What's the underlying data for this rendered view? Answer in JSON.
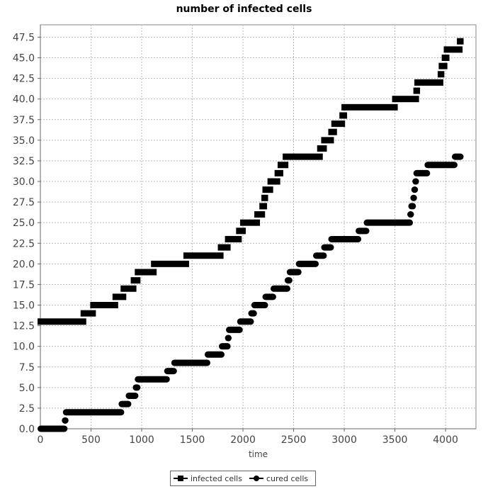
{
  "chart_data": {
    "type": "line",
    "title": "number of infected cells",
    "xlabel": "time",
    "ylabel": "",
    "xlim": [
      0,
      4300
    ],
    "ylim": [
      0,
      49
    ],
    "x_ticks": [
      "0",
      "500",
      "1000",
      "1500",
      "2000",
      "2500",
      "3000",
      "3500",
      "4000"
    ],
    "y_ticks": [
      "0.0",
      "2.5",
      "5.0",
      "7.5",
      "10.0",
      "12.5",
      "15.0",
      "17.5",
      "20.0",
      "22.5",
      "25.0",
      "27.5",
      "30.0",
      "32.5",
      "35.0",
      "37.5",
      "40.0",
      "42.5",
      "45.0",
      "47.5"
    ],
    "grid": true,
    "legend_position": "bottom",
    "series": [
      {
        "name": "infected cells",
        "marker": "square",
        "color": "#000000",
        "steps": [
          [
            0,
            425,
            13
          ],
          [
            425,
            520,
            14
          ],
          [
            520,
            740,
            15
          ],
          [
            740,
            820,
            16
          ],
          [
            820,
            920,
            17
          ],
          [
            920,
            960,
            18
          ],
          [
            960,
            1120,
            19
          ],
          [
            1120,
            1440,
            20
          ],
          [
            1440,
            1780,
            21
          ],
          [
            1780,
            1850,
            22
          ],
          [
            1850,
            1960,
            23
          ],
          [
            1960,
            2000,
            24
          ],
          [
            2000,
            2140,
            25
          ],
          [
            2140,
            2190,
            26
          ],
          [
            2190,
            2210,
            27
          ],
          [
            2210,
            2220,
            28
          ],
          [
            2220,
            2270,
            29
          ],
          [
            2270,
            2340,
            30
          ],
          [
            2340,
            2370,
            31
          ],
          [
            2370,
            2420,
            32
          ],
          [
            2420,
            2760,
            33
          ],
          [
            2760,
            2800,
            34
          ],
          [
            2800,
            2870,
            35
          ],
          [
            2870,
            2900,
            36
          ],
          [
            2900,
            2980,
            37
          ],
          [
            2980,
            3000,
            38
          ],
          [
            3000,
            3500,
            39
          ],
          [
            3500,
            3710,
            40
          ],
          [
            3710,
            3720,
            41
          ],
          [
            3720,
            3950,
            42
          ],
          [
            3950,
            3960,
            43
          ],
          [
            3960,
            3990,
            44
          ],
          [
            3990,
            4010,
            45
          ],
          [
            4010,
            4140,
            46
          ],
          [
            4140,
            4150,
            47
          ]
        ]
      },
      {
        "name": "cured cells",
        "marker": "circle",
        "color": "#000000",
        "steps": [
          [
            0,
            240,
            0
          ],
          [
            240,
            250,
            1
          ],
          [
            250,
            800,
            2
          ],
          [
            800,
            870,
            3
          ],
          [
            870,
            940,
            4
          ],
          [
            940,
            960,
            5
          ],
          [
            960,
            1250,
            6
          ],
          [
            1250,
            1320,
            7
          ],
          [
            1320,
            1650,
            8
          ],
          [
            1650,
            1790,
            9
          ],
          [
            1790,
            1850,
            10
          ],
          [
            1850,
            1860,
            11
          ],
          [
            1860,
            1970,
            12
          ],
          [
            1970,
            2080,
            13
          ],
          [
            2080,
            2110,
            14
          ],
          [
            2110,
            2220,
            15
          ],
          [
            2220,
            2300,
            16
          ],
          [
            2300,
            2440,
            17
          ],
          [
            2440,
            2460,
            18
          ],
          [
            2460,
            2550,
            19
          ],
          [
            2550,
            2720,
            20
          ],
          [
            2720,
            2800,
            21
          ],
          [
            2800,
            2870,
            22
          ],
          [
            2870,
            3140,
            23
          ],
          [
            3140,
            3220,
            24
          ],
          [
            3220,
            3650,
            25
          ],
          [
            3650,
            3660,
            26
          ],
          [
            3660,
            3680,
            27
          ],
          [
            3680,
            3690,
            28
          ],
          [
            3690,
            3700,
            29
          ],
          [
            3700,
            3710,
            30
          ],
          [
            3710,
            3820,
            31
          ],
          [
            3820,
            4090,
            32
          ],
          [
            4090,
            4150,
            33
          ]
        ]
      }
    ]
  }
}
